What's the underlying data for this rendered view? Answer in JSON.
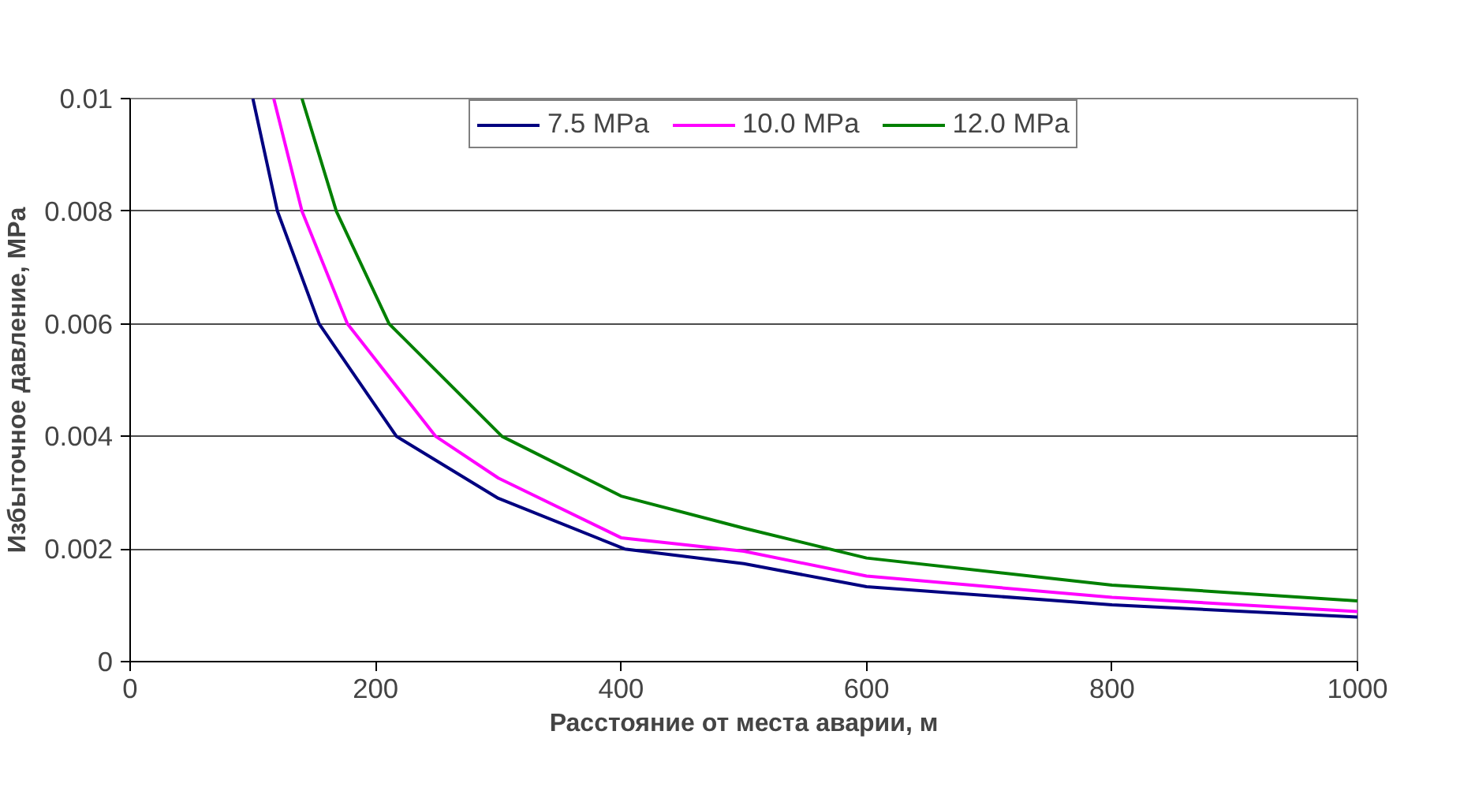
{
  "chart_data": {
    "type": "line",
    "xlabel": "Расстояние от места аварии, м",
    "ylabel": "Избыточное давление, MPa",
    "xlim": [
      0,
      1000
    ],
    "ylim": [
      0,
      0.01
    ],
    "xticks": [
      0,
      200,
      400,
      600,
      800,
      1000
    ],
    "yticks": [
      0,
      0.002,
      0.004,
      0.006,
      0.008,
      0.01
    ],
    "grid": "y",
    "legend": "top",
    "marker": "none",
    "line_style": "solid",
    "series": [
      {
        "name": "7.5 MPa",
        "color": "#000080",
        "x": [
          100,
          120,
          154,
          217,
          300,
          403,
          500,
          600,
          800,
          1000
        ],
        "values": [
          0.01,
          0.008,
          0.006,
          0.004,
          0.0029,
          0.002,
          0.00174,
          0.00133,
          0.00101,
          0.00079
        ]
      },
      {
        "name": "10.0 MPa",
        "color": "#ff00ff",
        "x": [
          117,
          140,
          177,
          249,
          300,
          400,
          500,
          600,
          800,
          1000
        ],
        "values": [
          0.01,
          0.008,
          0.006,
          0.004,
          0.00326,
          0.0022,
          0.00196,
          0.00152,
          0.00114,
          0.00089
        ]
      },
      {
        "name": "12.0 MPa",
        "color": "#008000",
        "x": [
          140,
          168,
          211,
          303,
          400,
          500,
          600,
          800,
          1000
        ],
        "values": [
          0.01,
          0.008,
          0.006,
          0.004,
          0.00294,
          0.00237,
          0.00184,
          0.00136,
          0.00108
        ]
      }
    ]
  }
}
